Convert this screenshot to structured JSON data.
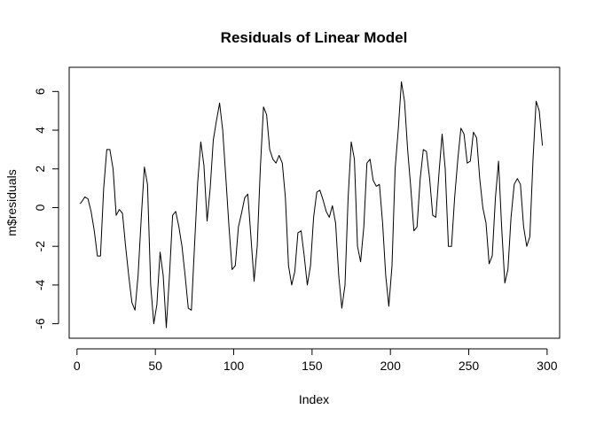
{
  "chart_data": {
    "type": "line",
    "title": "Residuals of Linear Model",
    "xlabel": "Index",
    "ylabel": "m$residuals",
    "xlim": [
      -5,
      308
    ],
    "ylim": [
      -6.75,
      7.25
    ],
    "x_ticks": [
      0,
      50,
      100,
      150,
      200,
      250,
      300
    ],
    "y_ticks": [
      -6,
      -4,
      -2,
      0,
      2,
      4,
      6
    ],
    "grid": false,
    "line_color": "#000000",
    "points": [
      [
        2,
        0.2
      ],
      [
        3,
        0.3
      ],
      [
        5,
        0.55
      ],
      [
        7,
        0.45
      ],
      [
        9,
        -0.2
      ],
      [
        11,
        -1.2
      ],
      [
        13,
        -2.5
      ],
      [
        15,
        -2.5
      ],
      [
        17,
        1.0
      ],
      [
        19,
        3.0
      ],
      [
        21,
        3.0
      ],
      [
        23,
        2.0
      ],
      [
        25,
        -0.4
      ],
      [
        27,
        -0.1
      ],
      [
        29,
        -0.3
      ],
      [
        31,
        -2.0
      ],
      [
        33,
        -3.5
      ],
      [
        35,
        -4.9
      ],
      [
        37,
        -5.3
      ],
      [
        39,
        -3.5
      ],
      [
        41,
        -0.5
      ],
      [
        43,
        2.1
      ],
      [
        45,
        1.2
      ],
      [
        47,
        -4.0
      ],
      [
        49,
        -6.0
      ],
      [
        51,
        -5.0
      ],
      [
        53,
        -2.3
      ],
      [
        55,
        -3.5
      ],
      [
        57,
        -6.2
      ],
      [
        59,
        -3.5
      ],
      [
        61,
        -0.4
      ],
      [
        63,
        -0.2
      ],
      [
        65,
        -1.0
      ],
      [
        67,
        -2.0
      ],
      [
        69,
        -3.5
      ],
      [
        71,
        -5.2
      ],
      [
        73,
        -5.3
      ],
      [
        75,
        -2.0
      ],
      [
        77,
        1.3
      ],
      [
        79,
        3.4
      ],
      [
        81,
        2.2
      ],
      [
        83,
        -0.7
      ],
      [
        85,
        1.0
      ],
      [
        87,
        3.5
      ],
      [
        89,
        4.5
      ],
      [
        91,
        5.4
      ],
      [
        93,
        4.0
      ],
      [
        95,
        1.5
      ],
      [
        97,
        -1.0
      ],
      [
        99,
        -3.2
      ],
      [
        101,
        -3.0
      ],
      [
        103,
        -1.0
      ],
      [
        105,
        -0.3
      ],
      [
        107,
        0.5
      ],
      [
        109,
        0.7
      ],
      [
        111,
        -1.5
      ],
      [
        113,
        -3.8
      ],
      [
        115,
        -2.0
      ],
      [
        117,
        2.0
      ],
      [
        119,
        5.2
      ],
      [
        121,
        4.8
      ],
      [
        123,
        3.0
      ],
      [
        125,
        2.5
      ],
      [
        127,
        2.3
      ],
      [
        129,
        2.7
      ],
      [
        131,
        2.3
      ],
      [
        133,
        0.5
      ],
      [
        135,
        -3.0
      ],
      [
        137,
        -4.0
      ],
      [
        139,
        -3.3
      ],
      [
        141,
        -1.3
      ],
      [
        143,
        -1.2
      ],
      [
        145,
        -2.5
      ],
      [
        147,
        -4.0
      ],
      [
        149,
        -3.0
      ],
      [
        151,
        -0.5
      ],
      [
        153,
        0.8
      ],
      [
        155,
        0.9
      ],
      [
        157,
        0.4
      ],
      [
        159,
        -0.2
      ],
      [
        161,
        -0.5
      ],
      [
        163,
        0.1
      ],
      [
        165,
        -0.8
      ],
      [
        167,
        -3.5
      ],
      [
        169,
        -5.2
      ],
      [
        171,
        -4.0
      ],
      [
        173,
        0.5
      ],
      [
        175,
        3.4
      ],
      [
        177,
        2.5
      ],
      [
        179,
        -2.0
      ],
      [
        181,
        -2.8
      ],
      [
        183,
        -1.0
      ],
      [
        185,
        2.3
      ],
      [
        187,
        2.5
      ],
      [
        189,
        1.4
      ],
      [
        191,
        1.1
      ],
      [
        193,
        1.2
      ],
      [
        195,
        -0.8
      ],
      [
        197,
        -3.5
      ],
      [
        199,
        -5.1
      ],
      [
        201,
        -3.0
      ],
      [
        203,
        2.0
      ],
      [
        205,
        4.0
      ],
      [
        207,
        6.5
      ],
      [
        209,
        5.5
      ],
      [
        211,
        3.0
      ],
      [
        213,
        1.0
      ],
      [
        215,
        -1.2
      ],
      [
        217,
        -1.0
      ],
      [
        219,
        1.5
      ],
      [
        221,
        3.0
      ],
      [
        223,
        2.9
      ],
      [
        225,
        1.5
      ],
      [
        227,
        -0.4
      ],
      [
        229,
        -0.5
      ],
      [
        231,
        1.8
      ],
      [
        233,
        3.8
      ],
      [
        235,
        2.0
      ],
      [
        237,
        -2.0
      ],
      [
        239,
        -2.0
      ],
      [
        241,
        0.5
      ],
      [
        243,
        2.5
      ],
      [
        245,
        4.1
      ],
      [
        247,
        3.8
      ],
      [
        249,
        2.3
      ],
      [
        251,
        2.4
      ],
      [
        253,
        3.9
      ],
      [
        255,
        3.6
      ],
      [
        257,
        1.5
      ],
      [
        259,
        0.0
      ],
      [
        261,
        -0.8
      ],
      [
        263,
        -2.9
      ],
      [
        265,
        -2.5
      ],
      [
        267,
        0.5
      ],
      [
        269,
        2.4
      ],
      [
        271,
        -1.0
      ],
      [
        273,
        -3.9
      ],
      [
        275,
        -3.2
      ],
      [
        277,
        -0.5
      ],
      [
        279,
        1.2
      ],
      [
        281,
        1.5
      ],
      [
        283,
        1.2
      ],
      [
        285,
        -1.0
      ],
      [
        287,
        -2.0
      ],
      [
        289,
        -1.5
      ],
      [
        291,
        2.5
      ],
      [
        293,
        5.5
      ],
      [
        295,
        5.0
      ],
      [
        297,
        3.2
      ]
    ]
  }
}
